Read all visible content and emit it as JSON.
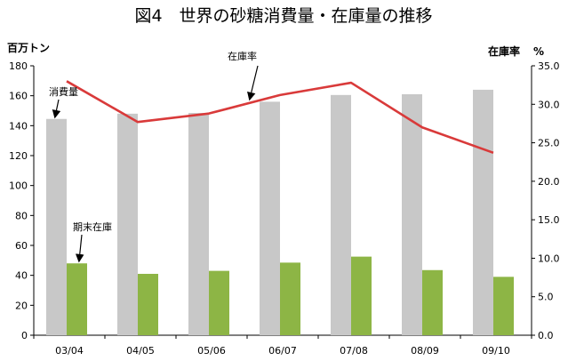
{
  "chart_data": {
    "type": "bar",
    "title": "図4　世界の砂糖消費量・在庫量の推移",
    "left_axis_unit": "百万トン",
    "right_axis_label": "在庫率",
    "right_axis_unit": "%",
    "categories": [
      "03/04",
      "04/05",
      "05/06",
      "06/07",
      "07/08",
      "08/09",
      "09/10"
    ],
    "y_left": {
      "min": 0,
      "max": 180,
      "step": 20,
      "ticks": [
        "0",
        "20",
        "40",
        "60",
        "80",
        "100",
        "120",
        "140",
        "160",
        "180"
      ]
    },
    "y_right": {
      "min": 0,
      "max": 35,
      "step": 5,
      "ticks": [
        "0.0",
        "5.0",
        "10.0",
        "15.0",
        "20.0",
        "25.0",
        "30.0",
        "35.0"
      ]
    },
    "grid": false,
    "series": [
      {
        "name": "消費量",
        "type": "bar",
        "axis": "left",
        "color": "#c8c8c8",
        "values": [
          144.5,
          148,
          148.5,
          156,
          160.5,
          161,
          164
        ]
      },
      {
        "name": "期末在庫",
        "type": "bar",
        "axis": "left",
        "color": "#8db545",
        "values": [
          48,
          41,
          43,
          48.5,
          52.5,
          43.5,
          39
        ]
      },
      {
        "name": "在庫率",
        "type": "line",
        "axis": "right",
        "color": "#d93a3a",
        "values": [
          33.0,
          27.7,
          28.8,
          31.2,
          32.8,
          27.0,
          23.7
        ]
      }
    ]
  }
}
